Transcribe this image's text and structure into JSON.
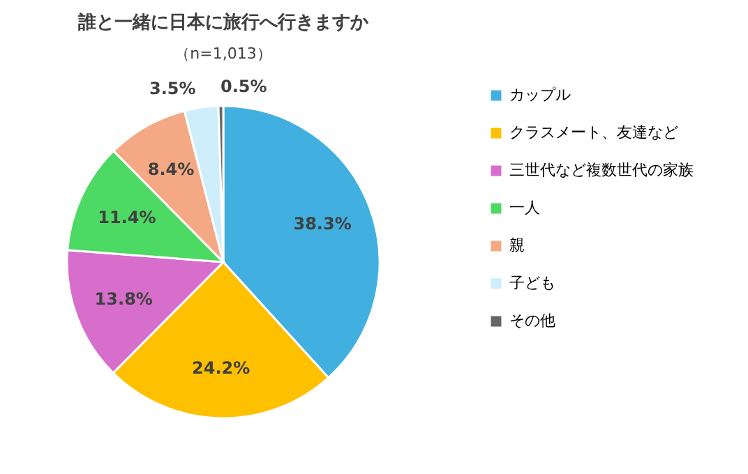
{
  "chart_data": {
    "type": "pie",
    "title": "誰と一緒に日本に旅行へ行きますか",
    "subtitle": "（n=1,013）",
    "categories": [
      "カップル",
      "クラスメート、友達など",
      "三世代など複数世代の家族",
      "一人",
      "親",
      "子ども",
      "その他"
    ],
    "values": [
      38.3,
      24.2,
      13.8,
      11.4,
      8.4,
      3.5,
      0.5
    ],
    "colors": [
      "#41b0e0",
      "#ffc000",
      "#d86ecc",
      "#4cd964",
      "#f4a984",
      "#cdeefa",
      "#666666"
    ],
    "value_labels": [
      "38.3%",
      "24.2%",
      "13.8%",
      "11.4%",
      "8.4%",
      "3.5%",
      "0.5%"
    ],
    "legend": "right"
  }
}
